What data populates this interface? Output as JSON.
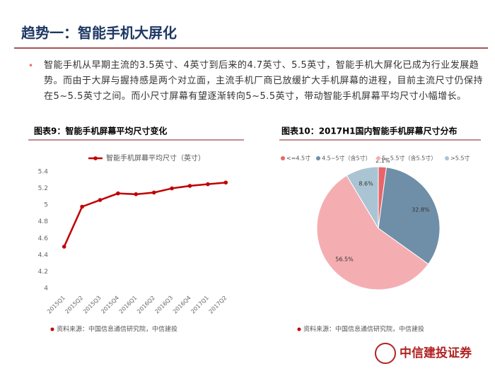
{
  "header": {
    "title": "趋势一：智能手机大屏化"
  },
  "bullet": "智能手机从早期主流的3.5英寸、4英寸到后来的4.7英寸、5.5英寸，智能手机大屏化已成为行业发展趋势。而由于大屏与握持感是两个对立面，主流手机厂商已放缓扩大手机屏幕的进程，目前主流尺寸仍保持在5~5.5英寸之间。而小尺寸屏幕有望逐渐转向5~5.5英寸，带动智能手机屏幕平均尺寸小幅增长。",
  "chart_data": [
    {
      "type": "line",
      "title": "图表9：智能手机屏幕平均尺寸变化",
      "categories": [
        "2015Q1",
        "2015Q2",
        "2015Q3",
        "2015Q4",
        "2016Q1",
        "2016Q2",
        "2016Q3",
        "2016Q4",
        "2017Q1",
        "2017Q2"
      ],
      "series": [
        {
          "name": "智能手机屏幕平均尺寸（英寸）",
          "color": "#c00000",
          "values": [
            4.5,
            4.98,
            5.06,
            5.14,
            5.13,
            5.15,
            5.2,
            5.23,
            5.25,
            5.27
          ]
        }
      ],
      "ylim": [
        4,
        5.4
      ],
      "yticks": [
        4,
        4.2,
        4.4,
        4.6,
        4.8,
        5,
        5.2,
        5.4
      ],
      "grid": false,
      "legend": "top",
      "source": "资料来源：中国信息通信研究院，中信建投"
    },
    {
      "type": "pie",
      "title": "图表10：2017H1国内智能手机屏幕尺寸分布",
      "categories": [
        "<=4.5寸",
        "4.5~5寸（含5寸）",
        "5~5.5寸（含5.5寸）",
        ">5.5寸"
      ],
      "values": [
        2.1,
        32.8,
        56.5,
        8.6
      ],
      "value_labels": [
        "2.1%",
        "32.8%",
        "56.5%",
        "8.6%"
      ],
      "colors": [
        "#e8656a",
        "#6f8fa8",
        "#f4aeb2",
        "#aac4d4"
      ],
      "legend": "top",
      "source": "资料来源：中国信息通信研究院，中信建投"
    }
  ],
  "footer": {
    "logo": "中信建投证券"
  }
}
